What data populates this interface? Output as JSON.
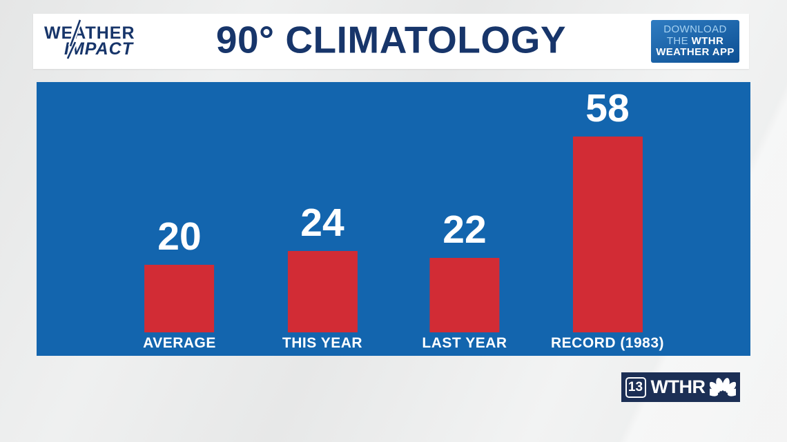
{
  "header": {
    "brand": {
      "line1": "WEATHER",
      "line2": "IMPACT"
    },
    "title": "90° CLIMATOLOGY",
    "app_button": {
      "line1": "DOWNLOAD",
      "line2_prefix": "THE ",
      "line2_bold": "WTHR",
      "line3": "WEATHER APP"
    }
  },
  "chart_data": {
    "type": "bar",
    "title": "90° CLIMATOLOGY",
    "categories": [
      "AVERAGE",
      "THIS YEAR",
      "LAST YEAR",
      "RECORD (1983)"
    ],
    "values": [
      20,
      24,
      22,
      58
    ],
    "xlabel": "",
    "ylabel": "",
    "ylim": [
      0,
      60
    ],
    "grid": false,
    "legend": false,
    "value_labels_above_bars": true,
    "bar_color": "#d22c35",
    "background_color": "#1365ae",
    "label_color": "#ffffff"
  },
  "footer": {
    "station": {
      "channel": "13",
      "callsign": "WTHR"
    }
  },
  "icons": {
    "brand_bolt": "lightning-bolt",
    "network": "nbc-peacock"
  },
  "colors": {
    "navy": "#17356a",
    "bar_red": "#d22c35",
    "panel_blue": "#1365ae",
    "button_blue_top": "#2f7cc1",
    "button_blue_bottom": "#0c4e92",
    "light_blue_text": "#a6d2f2",
    "station_navy": "#1c2f55",
    "background_gray": "#eaebeb"
  }
}
